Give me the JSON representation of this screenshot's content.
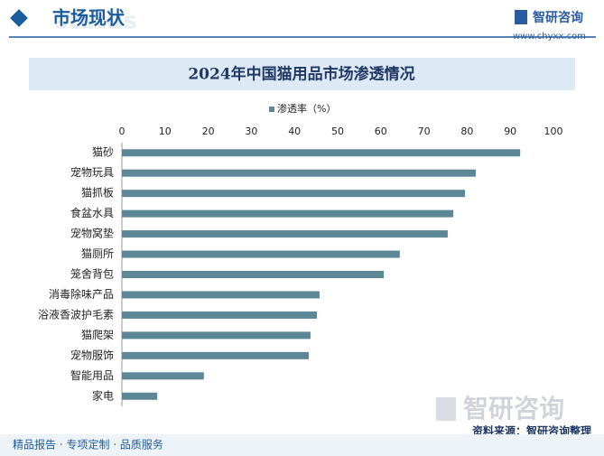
{
  "header": {
    "section": "市场现状",
    "section_bg": "status",
    "logo": "智研咨询",
    "url": "www.chyxx.com"
  },
  "chart_data": {
    "type": "bar",
    "orientation": "horizontal",
    "title": "2024年中国猫用品市场渗透情况",
    "categories": [
      "猫砂",
      "宠物玩具",
      "猫抓板",
      "食盆水具",
      "宠物窝垫",
      "猫厕所",
      "笼舍背包",
      "消毒除味产品",
      "浴液香波护毛素",
      "猫爬架",
      "宠物服饰",
      "智能用品",
      "家电"
    ],
    "series": [
      {
        "name": "渗透率（%）",
        "color": "#5b8797",
        "values": [
          92.3,
          82.0,
          79.5,
          76.8,
          75.5,
          64.4,
          60.7,
          45.8,
          45.2,
          43.7,
          43.3,
          19.0,
          8.2
        ]
      }
    ],
    "xlim": [
      0,
      100
    ],
    "xticks": [
      0,
      10,
      20,
      30,
      40,
      50,
      60,
      70,
      80,
      90,
      100
    ],
    "grid": false,
    "legend": "top"
  },
  "footer": {
    "slogan": "精品报告 · 专项定制 · 品质服务",
    "source": "资料来源：智研咨询整理",
    "logo": "智研咨询"
  }
}
